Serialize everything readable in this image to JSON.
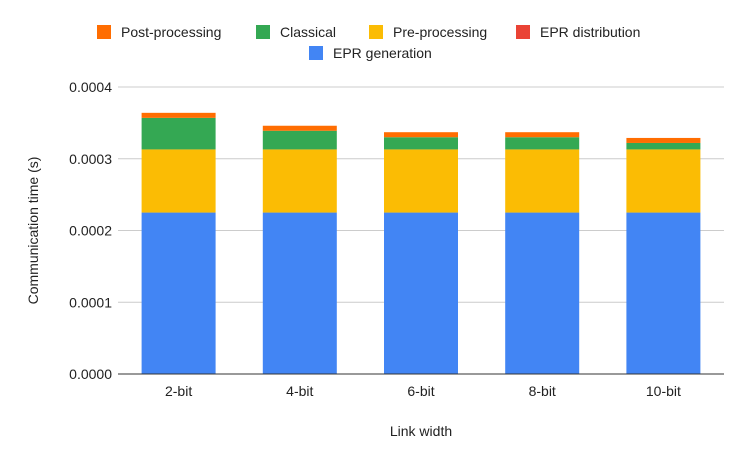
{
  "chart_data": {
    "type": "bar",
    "stacked": true,
    "title": "",
    "xlabel": "Link width",
    "ylabel": "Communication time (s)",
    "ylim": [
      0,
      0.0004
    ],
    "yticks": [
      "0.0000",
      "0.0001",
      "0.0002",
      "0.0003",
      "0.0004"
    ],
    "categories": [
      "2-bit",
      "4-bit",
      "6-bit",
      "8-bit",
      "10-bit"
    ],
    "grid": true,
    "legend_position": "top",
    "series": [
      {
        "name": "EPR generation",
        "color": "#4285F4",
        "values": [
          0.000225,
          0.000225,
          0.000225,
          0.000225,
          0.000225
        ]
      },
      {
        "name": "EPR distribution",
        "color": "#EA4335",
        "values": [
          0,
          0,
          0,
          0,
          0
        ]
      },
      {
        "name": "Pre-processing",
        "color": "#FBBC04",
        "values": [
          8.8e-05,
          8.8e-05,
          8.8e-05,
          8.8e-05,
          8.8e-05
        ]
      },
      {
        "name": "Classical",
        "color": "#34A853",
        "values": [
          4.4e-05,
          2.6e-05,
          1.7e-05,
          1.7e-05,
          9e-06
        ]
      },
      {
        "name": "Post-processing",
        "color": "#FF6D01",
        "values": [
          7e-06,
          7e-06,
          7e-06,
          7e-06,
          7e-06
        ]
      }
    ],
    "legend_order": [
      "Post-processing",
      "Classical",
      "Pre-processing",
      "EPR distribution",
      "EPR generation"
    ]
  }
}
